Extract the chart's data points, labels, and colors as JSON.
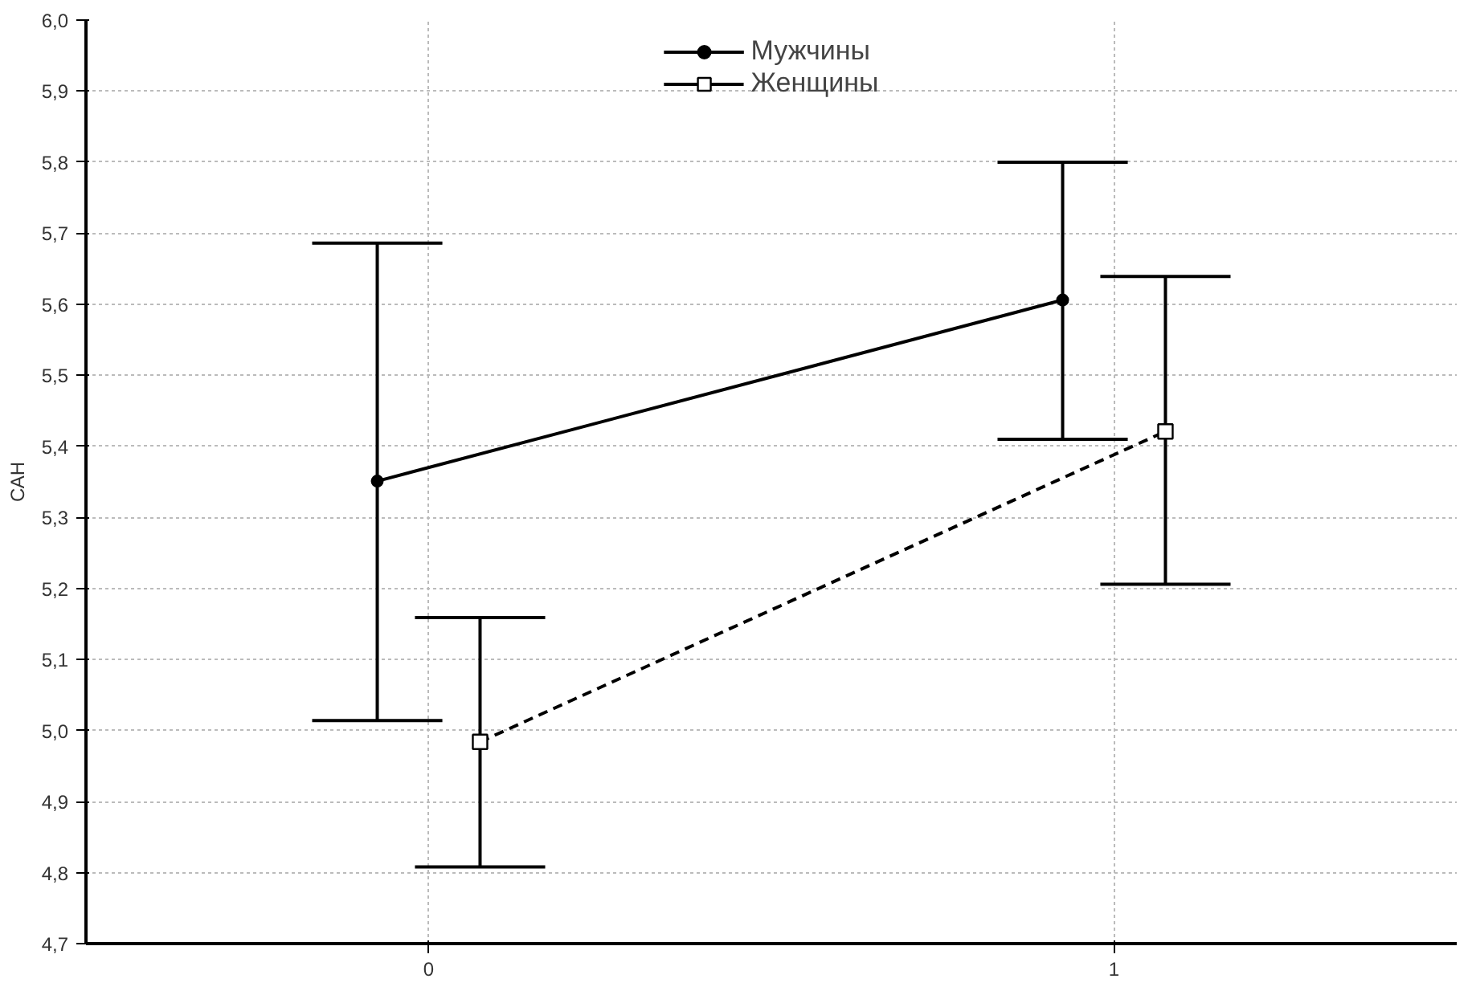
{
  "chart_data": {
    "type": "line",
    "ylabel": "САН",
    "series": [
      {
        "name": "Мужчины",
        "color": "#000000",
        "x": [
          -0.075,
          0.925
        ],
        "values": [
          5.351,
          5.606
        ],
        "errors": [
          [
            5.014,
            5.686
          ],
          [
            5.41,
            5.8
          ]
        ],
        "marker": "circle",
        "line_style": "solid"
      },
      {
        "name": "Женщины",
        "color": "#000000",
        "x": [
          0.075,
          1.075
        ],
        "values": [
          4.984,
          5.421
        ],
        "errors": [
          [
            4.808,
            5.159
          ],
          [
            5.206,
            5.639
          ]
        ],
        "marker": "square",
        "line_style": "dashed"
      }
    ],
    "xlim": [
      -0.5,
      1.5
    ],
    "xticks": [
      0,
      1
    ],
    "ylim": [
      4.7,
      6.0
    ],
    "yticks": [
      {
        "value": 4.7,
        "label": "4,7"
      },
      {
        "value": 4.8,
        "label": "4,8"
      },
      {
        "value": 4.9,
        "label": "4,9"
      },
      {
        "value": 5.0,
        "label": "5,0"
      },
      {
        "value": 5.1,
        "label": "5,1"
      },
      {
        "value": 5.2,
        "label": "5,2"
      },
      {
        "value": 5.3,
        "label": "5,3"
      },
      {
        "value": 5.4,
        "label": "5,4"
      },
      {
        "value": 5.5,
        "label": "5,5"
      },
      {
        "value": 5.6,
        "label": "5,6"
      },
      {
        "value": 5.7,
        "label": "5,7"
      },
      {
        "value": 5.8,
        "label": "5,8"
      },
      {
        "value": 5.9,
        "label": "5,9"
      },
      {
        "value": 6.0,
        "label": "6,0"
      }
    ],
    "grid": true,
    "legend": "top"
  }
}
